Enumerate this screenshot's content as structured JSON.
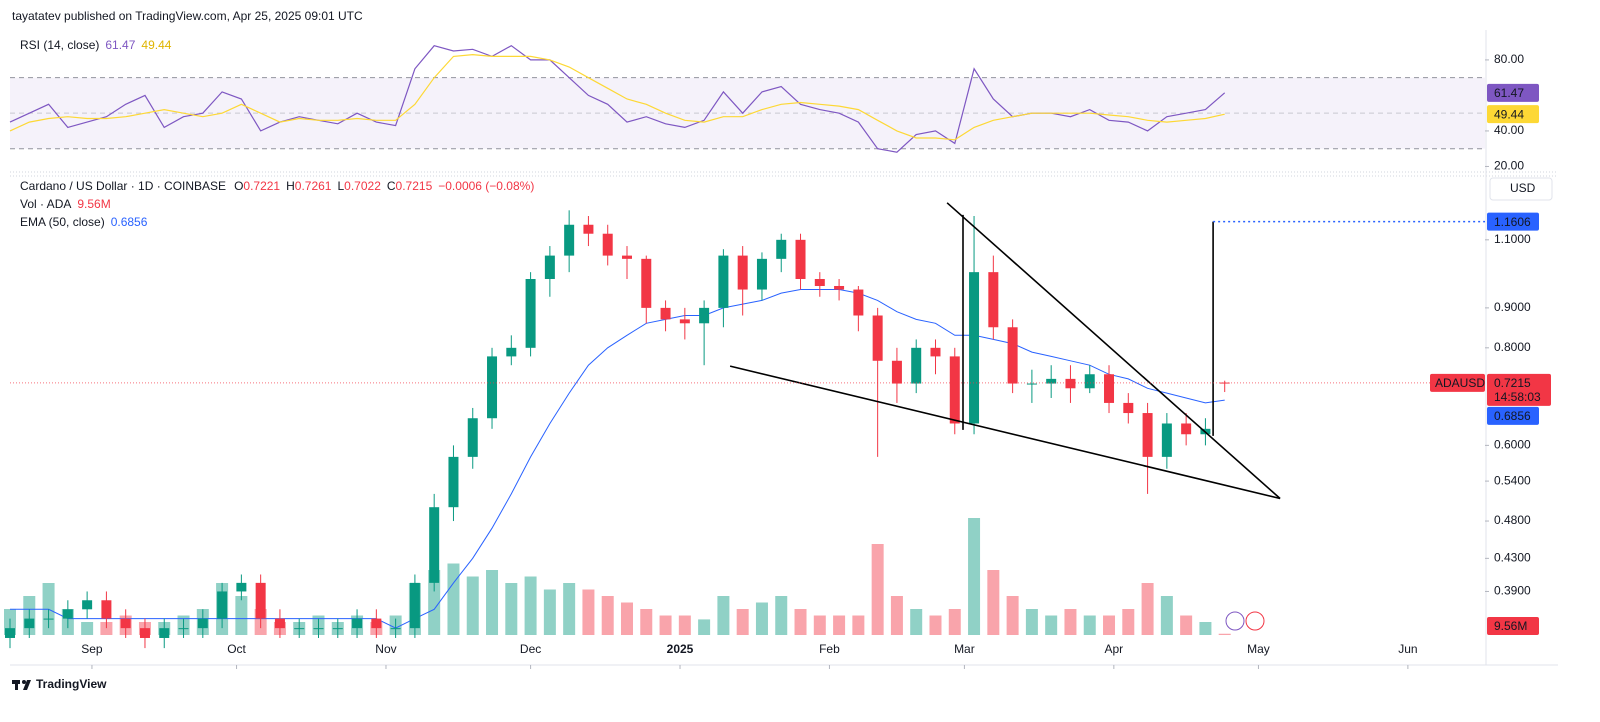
{
  "header": {
    "published": "tayatatev published on TradingView.com, Apr 25, 2025 09:01 UTC"
  },
  "footer": {
    "brand": "TradingView"
  },
  "chart_data": [
    {
      "type": "line",
      "title": "RSI (14, close)",
      "x": [
        0,
        4,
        8,
        12,
        16,
        20,
        24,
        28,
        32,
        36,
        40,
        44,
        48,
        52,
        56,
        60,
        64,
        68,
        72,
        76,
        80,
        84,
        88,
        92,
        96,
        100,
        104,
        108,
        112,
        116,
        120,
        124,
        128,
        132,
        136,
        140,
        144,
        148,
        152,
        156,
        160,
        164,
        168,
        172,
        176,
        180,
        184,
        188,
        192,
        196,
        200,
        204,
        208,
        212,
        216,
        220,
        224,
        228,
        232,
        236,
        240,
        244,
        248,
        252
      ],
      "series": [
        {
          "color": "#7e57c2",
          "values": [
            45,
            50,
            55,
            42,
            45,
            48,
            55,
            60,
            42,
            48,
            50,
            62,
            58,
            40,
            45,
            48,
            46,
            44,
            50,
            45,
            43,
            75,
            88,
            85,
            86,
            82,
            88,
            80,
            80,
            70,
            60,
            55,
            45,
            48,
            44,
            42,
            46,
            62,
            50,
            62,
            65,
            55,
            52,
            50,
            45,
            30,
            28,
            38,
            40,
            33,
            75,
            58,
            48,
            50,
            50,
            48,
            52,
            46,
            45,
            40,
            48,
            50,
            52,
            61.47
          ]
        },
        {
          "color": "#fdd835",
          "values": [
            40,
            45,
            47,
            48,
            47,
            47,
            48,
            50,
            52,
            50,
            48,
            50,
            55,
            50,
            45,
            47,
            46,
            46,
            47,
            46,
            46,
            55,
            70,
            82,
            83,
            82,
            82,
            82,
            80,
            76,
            70,
            64,
            58,
            55,
            50,
            46,
            45,
            48,
            48,
            52,
            55,
            56,
            55,
            54,
            52,
            46,
            40,
            36,
            36,
            35,
            42,
            46,
            48,
            50,
            50,
            50,
            50,
            49,
            48,
            46,
            45,
            46,
            47,
            49.44
          ]
        }
      ],
      "xlim": [
        0,
        306
      ],
      "ylim": [
        18,
        94.6
      ],
      "yticks": [
        {
          "value": 20,
          "label": "20.00"
        },
        {
          "value": 40,
          "label": "40.00"
        },
        {
          "value": 80,
          "label": "80.00"
        }
      ],
      "bands": [
        30,
        50,
        70
      ]
    },
    {
      "type": "candlestick",
      "title": "Cardano / US Dollar · 1D · COINBASE",
      "symbol": "ADAUSD",
      "currency": "USD",
      "countdown": "14:58:03",
      "change": "−0.0006 (−0.08%)",
      "ohlc_labels": [
        "O",
        "H",
        "L",
        "C"
      ],
      "x": [
        0,
        4,
        8,
        12,
        16,
        20,
        24,
        28,
        32,
        36,
        40,
        44,
        48,
        52,
        56,
        60,
        64,
        68,
        72,
        76,
        80,
        84,
        88,
        92,
        96,
        100,
        104,
        108,
        112,
        116,
        120,
        124,
        128,
        132,
        136,
        140,
        144,
        148,
        152,
        156,
        160,
        164,
        168,
        172,
        176,
        180,
        184,
        188,
        192,
        196,
        200,
        204,
        208,
        212,
        216,
        220,
        224,
        228,
        232,
        236,
        240,
        244,
        248,
        252
      ],
      "open": [
        0.34,
        0.35,
        0.36,
        0.36,
        0.37,
        0.38,
        0.36,
        0.35,
        0.34,
        0.35,
        0.35,
        0.36,
        0.39,
        0.4,
        0.36,
        0.35,
        0.35,
        0.35,
        0.35,
        0.36,
        0.35,
        0.35,
        0.4,
        0.5,
        0.58,
        0.65,
        0.78,
        0.8,
        0.98,
        1.05,
        1.15,
        1.12,
        1.05,
        1.04,
        0.9,
        0.87,
        0.86,
        0.9,
        1.05,
        0.95,
        1.04,
        1.1,
        0.98,
        0.96,
        0.95,
        0.88,
        0.77,
        0.72,
        0.8,
        0.78,
        0.64,
        1.0,
        0.85,
        0.72,
        0.72,
        0.73,
        0.71,
        0.74,
        0.68,
        0.66,
        0.58,
        0.64,
        0.62,
        0.7221
      ],
      "high": [
        0.36,
        0.37,
        0.37,
        0.38,
        0.39,
        0.39,
        0.37,
        0.36,
        0.36,
        0.36,
        0.37,
        0.4,
        0.41,
        0.41,
        0.37,
        0.36,
        0.36,
        0.36,
        0.37,
        0.37,
        0.36,
        0.41,
        0.52,
        0.6,
        0.67,
        0.8,
        0.83,
        1.0,
        1.08,
        1.2,
        1.18,
        1.15,
        1.08,
        1.05,
        0.92,
        0.9,
        0.92,
        1.07,
        1.08,
        1.06,
        1.12,
        1.12,
        1.0,
        0.98,
        0.96,
        0.9,
        0.8,
        0.82,
        0.82,
        0.8,
        1.18,
        1.05,
        0.87,
        0.75,
        0.76,
        0.76,
        0.76,
        0.76,
        0.7,
        0.68,
        0.66,
        0.66,
        0.65,
        0.7261
      ],
      "low": [
        0.33,
        0.34,
        0.35,
        0.35,
        0.36,
        0.35,
        0.34,
        0.33,
        0.33,
        0.34,
        0.34,
        0.35,
        0.38,
        0.35,
        0.34,
        0.34,
        0.34,
        0.34,
        0.34,
        0.34,
        0.34,
        0.34,
        0.39,
        0.48,
        0.56,
        0.63,
        0.76,
        0.78,
        0.93,
        1.0,
        1.08,
        1.02,
        0.98,
        0.86,
        0.84,
        0.82,
        0.76,
        0.85,
        0.88,
        0.92,
        1.0,
        0.95,
        0.93,
        0.92,
        0.84,
        0.58,
        0.68,
        0.7,
        0.74,
        0.62,
        0.62,
        0.82,
        0.7,
        0.68,
        0.69,
        0.68,
        0.7,
        0.66,
        0.64,
        0.52,
        0.56,
        0.6,
        0.6,
        0.7022
      ],
      "close": [
        0.35,
        0.36,
        0.36,
        0.37,
        0.38,
        0.36,
        0.35,
        0.34,
        0.35,
        0.35,
        0.36,
        0.39,
        0.4,
        0.36,
        0.35,
        0.35,
        0.35,
        0.35,
        0.36,
        0.35,
        0.35,
        0.4,
        0.5,
        0.58,
        0.65,
        0.78,
        0.8,
        0.98,
        1.05,
        1.15,
        1.12,
        1.05,
        1.04,
        0.9,
        0.87,
        0.86,
        0.9,
        1.05,
        0.95,
        1.04,
        1.1,
        0.98,
        0.96,
        0.95,
        0.88,
        0.77,
        0.72,
        0.8,
        0.78,
        0.64,
        1.0,
        0.85,
        0.72,
        0.72,
        0.73,
        0.71,
        0.74,
        0.68,
        0.66,
        0.58,
        0.64,
        0.62,
        0.63,
        0.7215
      ],
      "up_color": "#089981",
      "down_color": "#f23645",
      "ema": {
        "name": "EMA (50, close)",
        "color": "#2962ff",
        "values": [
          0.37,
          0.37,
          0.37,
          0.36,
          0.36,
          0.36,
          0.36,
          0.36,
          0.36,
          0.36,
          0.36,
          0.36,
          0.36,
          0.36,
          0.36,
          0.36,
          0.36,
          0.36,
          0.36,
          0.36,
          0.35,
          0.36,
          0.37,
          0.4,
          0.43,
          0.47,
          0.52,
          0.58,
          0.64,
          0.7,
          0.76,
          0.8,
          0.83,
          0.86,
          0.87,
          0.88,
          0.88,
          0.9,
          0.91,
          0.92,
          0.94,
          0.95,
          0.95,
          0.95,
          0.94,
          0.92,
          0.89,
          0.87,
          0.86,
          0.83,
          0.83,
          0.82,
          0.81,
          0.79,
          0.78,
          0.77,
          0.76,
          0.74,
          0.73,
          0.71,
          0.7,
          0.69,
          0.68,
          0.6856
        ]
      },
      "volume": {
        "name": "Vol · ADA",
        "values": [
          200000000.0,
          300000000.0,
          400000000.0,
          200000000.0,
          100000000.0,
          100000000.0,
          150000000.0,
          100000000.0,
          100000000.0,
          150000000.0,
          200000000.0,
          400000000.0,
          300000000.0,
          200000000.0,
          100000000.0,
          100000000.0,
          150000000.0,
          100000000.0,
          150000000.0,
          100000000.0,
          150000000.0,
          400000000.0,
          500000000.0,
          550000000.0,
          450000000.0,
          500000000.0,
          400000000.0,
          450000000.0,
          350000000.0,
          400000000.0,
          350000000.0,
          300000000.0,
          250000000.0,
          200000000.0,
          150000000.0,
          150000000.0,
          120000000.0,
          300000000.0,
          200000000.0,
          250000000.0,
          300000000.0,
          200000000.0,
          150000000.0,
          150000000.0,
          150000000.0,
          700000000.0,
          300000000.0,
          200000000.0,
          150000000.0,
          200000000.0,
          900000000.0,
          500000000.0,
          300000000.0,
          200000000.0,
          150000000.0,
          200000000.0,
          150000000.0,
          150000000.0,
          200000000.0,
          400000000.0,
          300000000.0,
          150000000.0,
          100000000.0,
          9560000
        ],
        "value_labels": [
          null,
          null,
          null,
          null,
          null,
          null,
          null,
          null,
          null,
          null,
          null,
          null,
          null,
          null,
          null,
          null,
          null,
          null,
          null,
          null,
          null,
          null,
          null,
          null,
          null,
          null,
          null,
          null,
          null,
          null,
          null,
          null,
          null,
          null,
          null,
          null,
          null,
          null,
          null,
          null,
          null,
          null,
          null,
          null,
          null,
          null,
          null,
          null,
          null,
          null,
          null,
          null,
          null,
          null,
          null,
          null,
          null,
          null,
          null,
          null,
          null,
          null,
          null,
          "9.56M"
        ],
        "vlim": [
          0,
          1000000000.0
        ]
      },
      "xlim": [
        0,
        306
      ],
      "xticks": [
        {
          "value": 17,
          "label": "Sep"
        },
        {
          "value": 47,
          "label": "Oct"
        },
        {
          "value": 78,
          "label": "Nov"
        },
        {
          "value": 108,
          "label": "Dec"
        },
        {
          "value": 139,
          "label": "2025"
        },
        {
          "value": 170,
          "label": "Feb"
        },
        {
          "value": 198,
          "label": "Mar"
        },
        {
          "value": 229,
          "label": "Apr"
        },
        {
          "value": 259,
          "label": "May"
        },
        {
          "value": 290,
          "label": "Jun"
        }
      ],
      "ylim": [
        0.343,
        1.32
      ],
      "log_scale": true,
      "yticks": [
        {
          "value": 1.1,
          "label": "1.1000"
        },
        {
          "value": 0.9,
          "label": "0.9000"
        },
        {
          "value": 0.8,
          "label": "0.8000"
        },
        {
          "value": 0.6,
          "label": "0.6000"
        },
        {
          "value": 0.54,
          "label": "0.5400"
        },
        {
          "value": 0.48,
          "label": "0.4800"
        },
        {
          "value": 0.43,
          "label": "0.4300"
        },
        {
          "value": 0.39,
          "label": "0.3900"
        }
      ],
      "drawings": [
        {
          "x": [
            194.4,
            263.5
          ],
          "y": [
            1.227,
            0.513
          ]
        },
        {
          "x": [
            149.4,
            263.5
          ],
          "y": [
            0.758,
            0.513
          ]
        },
        {
          "x": [
            197.7,
            197.7
          ],
          "y": [
            1.184,
            0.628
          ]
        },
        {
          "x": [
            249.6,
            249.6
          ],
          "y": [
            1.1606,
            0.617
          ]
        }
      ],
      "target": {
        "x": [
          249.6,
          306
        ],
        "value": 1.1606,
        "color": "#2962ff"
      }
    }
  ]
}
